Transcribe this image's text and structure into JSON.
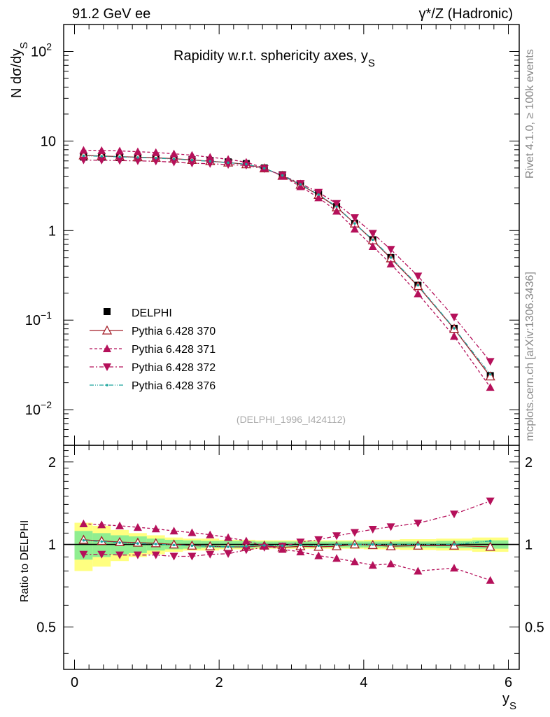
{
  "header": {
    "left": "91.2 GeV ee",
    "right": "γ*/Z (Hadronic)"
  },
  "plot": {
    "title": "Rapidity w.r.t. sphericity axes, y",
    "title_sub": "S",
    "ylabel_main": "N  dσ/dy",
    "ylabel_main_sub": "S",
    "ylabel_ratio": "Ratio to DELPHI",
    "xlabel": "y",
    "xlabel_sub": "S",
    "analysis_tag": "(DELPHI_1996_I424112)",
    "side_text_top": "Rivet 4.1.0, ≥ 100k events",
    "side_text_bottom": "mcplots.cern.ch [arXiv:1306.3436]"
  },
  "ticks": {
    "main_y": [
      {
        "base": "10",
        "exp": "2",
        "value": 100
      },
      {
        "base": "10",
        "exp": "",
        "value": 10
      },
      {
        "base": "1",
        "exp": "",
        "value": 1
      },
      {
        "base": "10",
        "exp": "−1",
        "value": 0.1
      },
      {
        "base": "10",
        "exp": "−2",
        "value": 0.01
      }
    ],
    "ratio_left": [
      "2",
      "1",
      "0.5"
    ],
    "ratio_right": [
      "2",
      "1",
      "0.5"
    ],
    "x": [
      "0",
      "2",
      "4",
      "6"
    ]
  },
  "legend": [
    {
      "label": "DELPHI"
    },
    {
      "label": "Pythia 6.428 370"
    },
    {
      "label": "Pythia 6.428 371"
    },
    {
      "label": "Pythia 6.428 372"
    },
    {
      "label": "Pythia 6.428 376"
    }
  ],
  "colors": {
    "data": "#000000",
    "p370": "#a31d28",
    "p371": "#b5105a",
    "p372": "#b5105a",
    "p376": "#1aa59c",
    "band_inner": "#90ee90",
    "band_outer": "#ffff80"
  },
  "chart_data": {
    "type": "line",
    "title": "Rapidity w.r.t. sphericity axes, y_S",
    "xlabel": "y_S",
    "ylabel": "N dσ/dy_S",
    "ylabel_ratio": "Ratio to DELPHI",
    "xlim": [
      -0.15,
      6.15
    ],
    "ylim": [
      0.004,
      200
    ],
    "yscale": "log",
    "ratio_ylim": [
      0.35,
      2.3
    ],
    "x": [
      0.125,
      0.375,
      0.625,
      0.875,
      1.125,
      1.375,
      1.625,
      1.875,
      2.125,
      2.375,
      2.625,
      2.875,
      3.125,
      3.375,
      3.625,
      3.875,
      4.125,
      4.375,
      4.75,
      5.25,
      5.75
    ],
    "series": [
      {
        "name": "DELPHI",
        "style": "data",
        "values": [
          6.62,
          6.6,
          6.55,
          6.5,
          6.45,
          6.35,
          6.2,
          6.05,
          5.85,
          5.6,
          5.0,
          4.2,
          3.3,
          2.55,
          1.85,
          1.2,
          0.79,
          0.5,
          0.245,
          0.081,
          0.024
        ],
        "band_inner": [
          0.12,
          0.1,
          0.08,
          0.07,
          0.05,
          0.04,
          0.035,
          0.03,
          0.03,
          0.03,
          0.025,
          0.025,
          0.025,
          0.025,
          0.025,
          0.025,
          0.025,
          0.025,
          0.025,
          0.03,
          0.035
        ],
        "band_outer": [
          0.2,
          0.17,
          0.13,
          0.1,
          0.08,
          0.06,
          0.05,
          0.05,
          0.04,
          0.04,
          0.035,
          0.035,
          0.035,
          0.035,
          0.035,
          0.035,
          0.04,
          0.04,
          0.045,
          0.05,
          0.06
        ]
      },
      {
        "name": "Pythia 6.428 370",
        "style": "open-triangle-up",
        "values": [
          6.9,
          6.8,
          6.7,
          6.6,
          6.5,
          6.35,
          6.15,
          5.95,
          5.75,
          5.5,
          4.95,
          4.1,
          3.25,
          2.5,
          1.82,
          1.2,
          0.78,
          0.49,
          0.24,
          0.08,
          0.0235
        ]
      },
      {
        "name": "Pythia 6.428 371",
        "style": "filled-triangle-up",
        "values": [
          7.9,
          7.85,
          7.75,
          7.6,
          7.45,
          7.2,
          6.95,
          6.6,
          6.25,
          5.8,
          5.0,
          4.05,
          3.1,
          2.33,
          1.65,
          1.04,
          0.665,
          0.425,
          0.197,
          0.066,
          0.0178
        ]
      },
      {
        "name": "Pythia 6.428 372",
        "style": "filled-triangle-down",
        "values": [
          6.12,
          6.1,
          6.05,
          6.0,
          5.95,
          5.8,
          5.65,
          5.58,
          5.45,
          5.35,
          4.9,
          4.15,
          3.35,
          2.67,
          2.0,
          1.39,
          0.93,
          0.615,
          0.31,
          0.108,
          0.0345
        ]
      },
      {
        "name": "Pythia 6.428 376",
        "style": "dash-dot-dots",
        "values": [
          6.85,
          6.75,
          6.65,
          6.55,
          6.45,
          6.3,
          6.12,
          5.93,
          5.73,
          5.5,
          4.96,
          4.13,
          3.28,
          2.52,
          1.85,
          1.2,
          0.79,
          0.5,
          0.245,
          0.081,
          0.0248
        ]
      }
    ],
    "ratios": [
      {
        "name": "Pythia 6.428 370",
        "values": [
          1.04,
          1.03,
          1.02,
          1.015,
          1.01,
          1.0,
          0.99,
          0.985,
          0.98,
          0.98,
          0.99,
          0.975,
          0.985,
          0.98,
          0.985,
          1.0,
          0.995,
          0.985,
          0.99,
          0.99,
          0.98
        ]
      },
      {
        "name": "Pythia 6.428 371",
        "values": [
          1.19,
          1.18,
          1.17,
          1.155,
          1.14,
          1.12,
          1.105,
          1.085,
          1.06,
          1.03,
          0.99,
          0.96,
          0.94,
          0.91,
          0.89,
          0.865,
          0.84,
          0.85,
          0.8,
          0.82,
          0.74
        ]
      },
      {
        "name": "Pythia 6.428 372",
        "values": [
          0.92,
          0.92,
          0.915,
          0.915,
          0.915,
          0.905,
          0.905,
          0.92,
          0.925,
          0.955,
          0.975,
          0.985,
          1.02,
          1.04,
          1.075,
          1.105,
          1.135,
          1.16,
          1.195,
          1.29,
          1.44
        ]
      },
      {
        "name": "Pythia 6.428 376",
        "values": [
          1.035,
          1.025,
          1.015,
          1.008,
          1.003,
          0.995,
          0.99,
          0.985,
          0.98,
          0.985,
          0.992,
          0.99,
          0.995,
          0.99,
          1.0,
          1.0,
          1.0,
          1.0,
          1.0,
          1.0,
          1.03
        ]
      }
    ]
  }
}
